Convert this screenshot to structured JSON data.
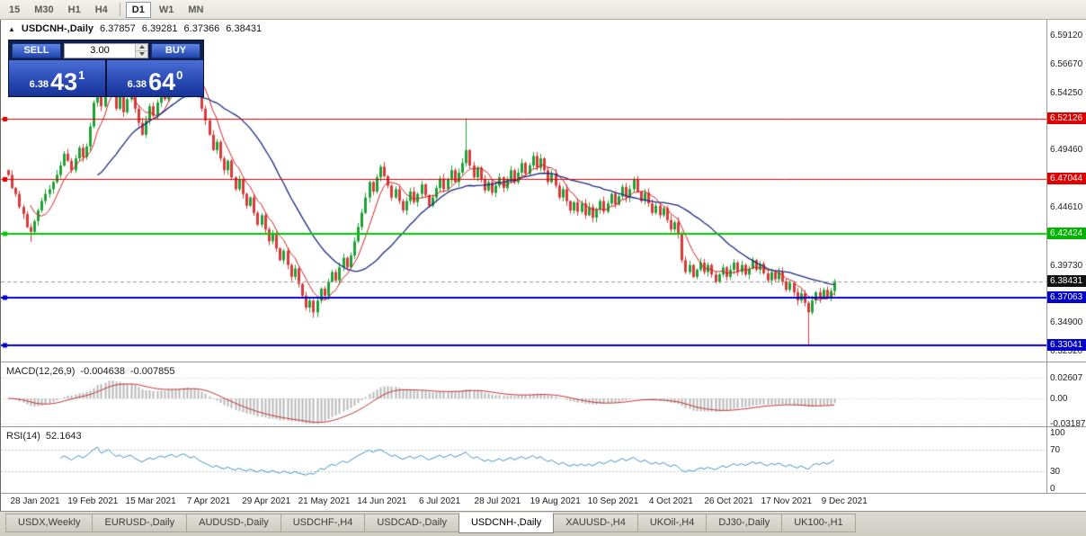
{
  "toolbar": {
    "timeframes": [
      "15",
      "M30",
      "H1",
      "H4",
      "D1",
      "W1",
      "MN"
    ],
    "active_timeframe": "D1"
  },
  "chart": {
    "collapse_icon": "▲",
    "symbol_line": {
      "symbol": "USDCNH-,Daily",
      "open": "6.37857",
      "high": "6.39281",
      "low": "6.37366",
      "close": "6.38431"
    },
    "one_click": {
      "sell_label": "SELL",
      "buy_label": "BUY",
      "volume": "3.00",
      "sell_price": {
        "prefix": "6.38",
        "big": "43",
        "sup": "1"
      },
      "buy_price": {
        "prefix": "6.38",
        "big": "64",
        "sup": "0"
      }
    }
  },
  "macd": {
    "title": "MACD(12,26,9)",
    "value_main": "-0.004638",
    "value_signal": "-0.007855",
    "scale": [
      "0.02607",
      "0.00",
      "-0.03187"
    ]
  },
  "rsi": {
    "title": "RSI(14)",
    "value": "52.1643",
    "scale": [
      "100",
      "70",
      "30",
      "0"
    ],
    "guide_levels": [
      70,
      30
    ]
  },
  "tabs": [
    {
      "label": "USDX,Weekly",
      "active": false
    },
    {
      "label": "EURUSD-,Daily",
      "active": false
    },
    {
      "label": "AUDUSD-,Daily",
      "active": false
    },
    {
      "label": "USDCHF-,H4",
      "active": false
    },
    {
      "label": "USDCAD-,Daily",
      "active": false
    },
    {
      "label": "USDCNH-,Daily",
      "active": true
    },
    {
      "label": "XAUUSD-,H4",
      "active": false
    },
    {
      "label": "UKOil-,H4",
      "active": false
    },
    {
      "label": "DJ30-,Daily",
      "active": false
    },
    {
      "label": "UK100-,H1",
      "active": false
    }
  ],
  "chart_data": {
    "type": "candlestick",
    "symbol": "USDCNH-",
    "timeframe": "Daily",
    "ohlc_current": {
      "open": 6.37857,
      "high": 6.39281,
      "low": 6.37366,
      "close": 6.38431
    },
    "price_range": [
      6.318,
      6.602
    ],
    "y_axis_ticks": [
      "6.59120",
      "6.56670",
      "6.54250",
      "6.51820",
      "6.49460",
      "6.47040",
      "6.44610",
      "6.42180",
      "6.39730",
      "6.37300",
      "6.34900",
      "6.32520"
    ],
    "x_axis_dates": [
      "28 Jan 2021",
      "19 Feb 2021",
      "15 Mar 2021",
      "7 Apr 2021",
      "29 Apr 2021",
      "21 May 2021",
      "14 Jun 2021",
      "6 Jul 2021",
      "28 Jul 2021",
      "19 Aug 2021",
      "10 Sep 2021",
      "4 Oct 2021",
      "26 Oct 2021",
      "17 Nov 2021",
      "9 Dec 2021"
    ],
    "first_open": 6.478,
    "closes": [
      6.474,
      6.463,
      6.458,
      6.447,
      6.441,
      6.43,
      6.426,
      6.435,
      6.444,
      6.452,
      6.458,
      6.462,
      6.468,
      6.474,
      6.482,
      6.492,
      6.486,
      6.478,
      6.488,
      6.497,
      6.489,
      6.498,
      6.515,
      6.535,
      6.555,
      6.532,
      6.548,
      6.562,
      6.545,
      6.53,
      6.542,
      6.527,
      6.538,
      6.545,
      6.53,
      6.518,
      6.508,
      6.52,
      6.532,
      6.524,
      6.535,
      6.546,
      6.538,
      6.55,
      6.558,
      6.545,
      6.556,
      6.568,
      6.56,
      6.548,
      6.558,
      6.542,
      6.53,
      6.52,
      6.508,
      6.495,
      6.502,
      6.488,
      6.478,
      6.486,
      6.472,
      6.462,
      6.47,
      6.458,
      6.448,
      6.455,
      6.442,
      6.432,
      6.44,
      6.428,
      6.418,
      6.425,
      6.412,
      6.402,
      6.41,
      6.398,
      6.388,
      6.395,
      6.382,
      6.372,
      6.362,
      6.368,
      6.358,
      6.368,
      6.378,
      6.372,
      6.384,
      6.392,
      6.385,
      6.396,
      6.404,
      6.396,
      6.406,
      6.418,
      6.43,
      6.442,
      6.455,
      6.468,
      6.46,
      6.472,
      6.481,
      6.473,
      6.465,
      6.455,
      6.462,
      6.452,
      6.444,
      6.452,
      6.46,
      6.451,
      6.458,
      6.466,
      6.457,
      6.448,
      6.455,
      6.463,
      6.471,
      6.462,
      6.47,
      6.478,
      6.468,
      6.476,
      6.484,
      6.495,
      6.482,
      6.472,
      6.48,
      6.47,
      6.461,
      6.468,
      6.459,
      6.465,
      6.472,
      6.463,
      6.47,
      6.478,
      6.468,
      6.476,
      6.484,
      6.475,
      6.482,
      6.49,
      6.48,
      6.488,
      6.478,
      6.468,
      6.475,
      6.465,
      6.455,
      6.462,
      6.452,
      6.444,
      6.451,
      6.443,
      6.45,
      6.44,
      6.447,
      6.438,
      6.445,
      6.452,
      6.443,
      6.45,
      6.458,
      6.449,
      6.456,
      6.464,
      6.455,
      6.462,
      6.47,
      6.46,
      6.452,
      6.459,
      6.45,
      6.442,
      6.448,
      6.44,
      6.446,
      6.436,
      6.428,
      6.434,
      6.424,
      6.402,
      6.392,
      6.398,
      6.388,
      6.394,
      6.4,
      6.392,
      6.398,
      6.39,
      6.384,
      6.39,
      6.396,
      6.388,
      6.394,
      6.4,
      6.392,
      6.398,
      6.39,
      6.395,
      6.402,
      6.394,
      6.399,
      6.391,
      6.385,
      6.392,
      6.386,
      6.392,
      6.384,
      6.377,
      6.383,
      6.375,
      6.368,
      6.374,
      6.366,
      6.358,
      6.368,
      6.375,
      6.37,
      6.377,
      6.371,
      6.376,
      6.3843
    ],
    "high_overrides": {
      "24": 6.578,
      "27": 6.582,
      "46": 6.5755,
      "47": 6.578,
      "123": 6.522
    },
    "low_overrides": {
      "6": 6.4175,
      "82": 6.3535,
      "215": 6.3304
    },
    "levels": [
      {
        "price": 6.52126,
        "label": "6.52126",
        "color": "#E00000",
        "badge": "#E00000",
        "lw": 1
      },
      {
        "price": 6.47044,
        "label": "6.47044",
        "color": "#E00000",
        "badge": "#E00000",
        "lw": 1
      },
      {
        "price": 6.42424,
        "label": "6.42424",
        "color": "#00CC00",
        "badge": "#00B400",
        "lw": 2
      },
      {
        "price": 6.37063,
        "label": "6.37063",
        "color": "#0000C8",
        "badge": "#0000C8",
        "lw": 2
      },
      {
        "price": 6.33041,
        "label": "6.33041",
        "color": "#0000C8",
        "badge": "#0000C8",
        "lw": 2
      }
    ],
    "current_price": {
      "price": 6.38431,
      "label": "6.38431",
      "badge": "#111111"
    },
    "moving_averages": [
      {
        "name": "fast",
        "period": 7,
        "color": "#D02020"
      },
      {
        "name": "slow",
        "period": 25,
        "color": "#1A2A80"
      }
    ],
    "indicators": [
      {
        "name": "MACD",
        "params": "12,26,9",
        "values": [
          -0.004638,
          -0.007855
        ],
        "scale": [
          0.02607,
          0,
          -0.03187
        ]
      },
      {
        "name": "RSI",
        "params": "14",
        "value": 52.1643,
        "scale": [
          100,
          70,
          30,
          0
        ]
      }
    ]
  }
}
